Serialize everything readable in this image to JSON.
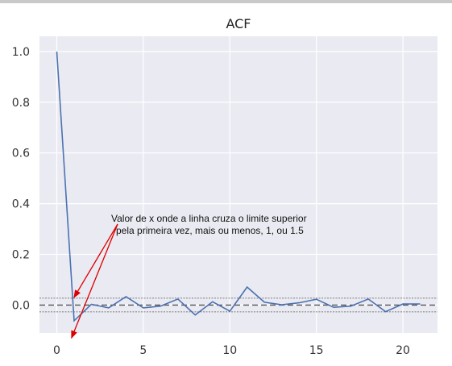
{
  "chart_data": {
    "type": "line",
    "title": "ACF",
    "x": [
      0,
      1,
      2,
      3,
      4,
      5,
      6,
      7,
      8,
      9,
      10,
      11,
      12,
      13,
      14,
      15,
      16,
      17,
      18,
      19,
      20,
      21
    ],
    "series": [
      {
        "values": [
          1.0,
          -0.062,
          0.003,
          -0.011,
          0.033,
          -0.011,
          -0.004,
          0.024,
          -0.039,
          0.013,
          -0.024,
          0.071,
          0.011,
          0.001,
          0.009,
          0.023,
          -0.009,
          -0.004,
          0.024,
          -0.026,
          0.004,
          0.004
        ]
      }
    ],
    "confidence_band": {
      "upper": 0.027,
      "lower": -0.027,
      "center": 0.0
    },
    "xlim": [
      -1,
      22
    ],
    "ylim": [
      -0.11,
      1.06
    ],
    "xticks": [
      0,
      5,
      10,
      15,
      20
    ],
    "yticks": [
      0.0,
      0.2,
      0.4,
      0.6,
      0.8,
      1.0
    ],
    "grid": true,
    "colors": {
      "line": "#4c72b0",
      "background": "#eaeaf2",
      "arrow": "#dd0000",
      "band": "#555555"
    },
    "annotation": {
      "lines": [
        "Valor de x onde a linha cruza o limite superior",
        "pela primeira vez, mais ou menos, 1, ou 1.5"
      ],
      "arrow_targets": [
        [
          1.0,
          0.03
        ],
        [
          0.85,
          -0.13
        ]
      ]
    }
  }
}
